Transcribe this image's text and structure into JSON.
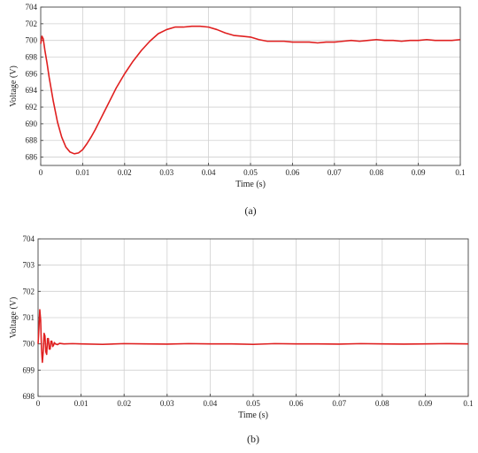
{
  "chart_data": [
    {
      "type": "line",
      "caption": "(a)",
      "xlabel": "Time (s)",
      "ylabel": "Voltage (V)",
      "xlim": [
        0,
        0.1
      ],
      "ylim": [
        685,
        704
      ],
      "xticks": [
        0,
        0.01,
        0.02,
        0.03,
        0.04,
        0.05,
        0.06,
        0.07,
        0.08,
        0.09,
        0.1
      ],
      "xtick_labels": [
        "0",
        "0.01",
        "0.02",
        "0.03",
        "0.04",
        "0.05",
        "0.06",
        "0.07",
        "0.08",
        "0.09",
        "0.1"
      ],
      "yticks": [
        686,
        688,
        690,
        692,
        694,
        696,
        698,
        700,
        702,
        704
      ],
      "ytick_labels": [
        "686",
        "688",
        "690",
        "692",
        "694",
        "696",
        "698",
        "700",
        "702",
        "704"
      ],
      "grid": true,
      "line_color": "#e02020",
      "series": [
        {
          "x": [
            0,
            0.0003,
            0.0006,
            0.001,
            0.0015,
            0.002,
            0.003,
            0.004,
            0.005,
            0.006,
            0.007,
            0.008,
            0.009,
            0.01,
            0.011,
            0.012,
            0.013,
            0.014,
            0.015,
            0.016,
            0.018,
            0.02,
            0.022,
            0.024,
            0.026,
            0.028,
            0.03,
            0.032,
            0.034,
            0.036,
            0.038,
            0.04,
            0.042,
            0.044,
            0.046,
            0.048,
            0.05,
            0.052,
            0.054,
            0.056,
            0.058,
            0.06,
            0.062,
            0.064,
            0.066,
            0.068,
            0.07,
            0.072,
            0.074,
            0.076,
            0.078,
            0.08,
            0.082,
            0.084,
            0.086,
            0.088,
            0.09,
            0.092,
            0.094,
            0.096,
            0.098,
            0.1
          ],
          "values": [
            699.6,
            700.5,
            700.2,
            698.8,
            697.3,
            695.6,
            692.7,
            690.2,
            688.4,
            687.2,
            686.6,
            686.4,
            686.5,
            686.9,
            687.6,
            688.4,
            689.3,
            690.3,
            691.3,
            692.3,
            694.3,
            696.0,
            697.5,
            698.8,
            699.9,
            700.8,
            701.3,
            701.6,
            701.6,
            701.7,
            701.7,
            701.6,
            701.3,
            700.9,
            700.6,
            700.5,
            700.4,
            700.1,
            699.9,
            699.9,
            699.9,
            699.8,
            699.8,
            699.8,
            699.7,
            699.8,
            699.8,
            699.9,
            700.0,
            699.9,
            700.0,
            700.1,
            700.0,
            700.0,
            699.9,
            700.0,
            700.0,
            700.1,
            700.0,
            700.0,
            700.0,
            700.1
          ]
        }
      ]
    },
    {
      "type": "line",
      "caption": "(b)",
      "xlabel": "Time (s)",
      "ylabel": "Voltage (V)",
      "xlim": [
        0,
        0.1
      ],
      "ylim": [
        698,
        704
      ],
      "xticks": [
        0,
        0.01,
        0.02,
        0.03,
        0.04,
        0.05,
        0.06,
        0.07,
        0.08,
        0.09,
        0.1
      ],
      "xtick_labels": [
        "0",
        "0.01",
        "0.02",
        "0.03",
        "0.04",
        "0.05",
        "0.06",
        "0.07",
        "0.08",
        "0.09",
        "0.1"
      ],
      "yticks": [
        698,
        699,
        700,
        701,
        702,
        703,
        704
      ],
      "ytick_labels": [
        "698",
        "699",
        "700",
        "701",
        "702",
        "703",
        "704"
      ],
      "grid": true,
      "line_color": "#e02020",
      "series": [
        {
          "x": [
            0,
            0.0002,
            0.0004,
            0.0006,
            0.0008,
            0.001,
            0.0012,
            0.0014,
            0.0016,
            0.0018,
            0.002,
            0.0022,
            0.0024,
            0.0026,
            0.0028,
            0.003,
            0.0032,
            0.0034,
            0.0036,
            0.0038,
            0.004,
            0.0045,
            0.005,
            0.006,
            0.008,
            0.01,
            0.015,
            0.02,
            0.025,
            0.03,
            0.035,
            0.04,
            0.045,
            0.05,
            0.055,
            0.06,
            0.065,
            0.07,
            0.075,
            0.08,
            0.085,
            0.09,
            0.095,
            0.1
          ],
          "values": [
            700.0,
            700.6,
            701.3,
            700.9,
            699.8,
            699.3,
            699.7,
            700.4,
            700.3,
            699.7,
            699.6,
            700.2,
            700.2,
            699.8,
            699.8,
            700.1,
            700.1,
            699.9,
            699.95,
            700.05,
            700.0,
            699.97,
            700.02,
            700.0,
            700.01,
            700.0,
            699.98,
            700.01,
            700.0,
            699.99,
            700.01,
            700.0,
            700.0,
            699.98,
            700.01,
            700.0,
            700.0,
            699.99,
            700.01,
            700.0,
            699.99,
            700.0,
            700.01,
            700.0
          ]
        }
      ]
    }
  ]
}
